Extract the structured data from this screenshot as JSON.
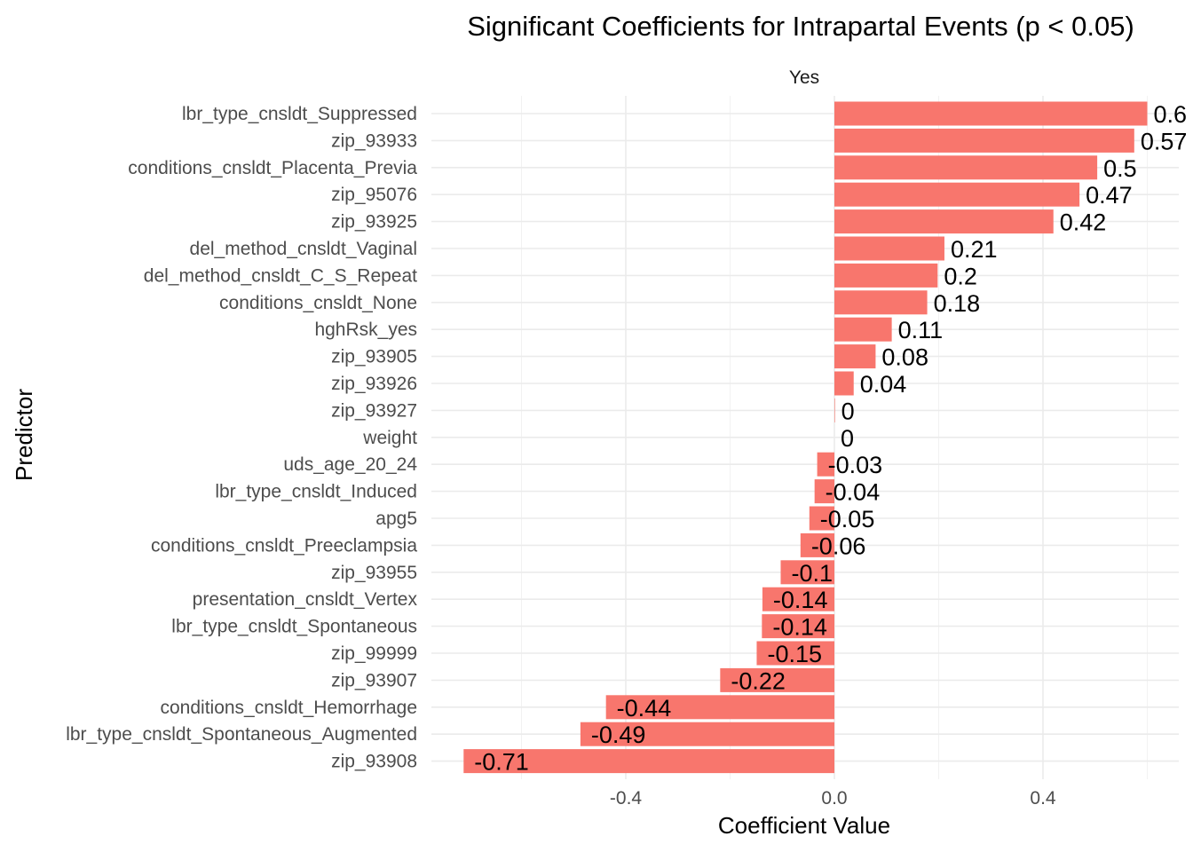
{
  "chart_data": {
    "type": "bar",
    "orientation": "horizontal",
    "title": "Significant Coefficients for Intrapartal Events (p < 0.05)",
    "facet_label": "Yes",
    "xlabel": "Coefficient Value",
    "ylabel": "Predictor",
    "xlim": [
      -0.745,
      0.665
    ],
    "x_ticks": [
      -0.4,
      0.0,
      0.4
    ],
    "x_tick_labels": [
      "-0.4",
      "0.0",
      "0.4"
    ],
    "grid": true,
    "legend": "none",
    "bar_color": "#F8766D",
    "categories": [
      "lbr_type_cnsldt_Suppressed",
      "zip_93933",
      "conditions_cnsldt_Placenta_Previa",
      "zip_95076",
      "zip_93925",
      "del_method_cnsldt_Vaginal",
      "del_method_cnsldt_C_S_Repeat",
      "conditions_cnsldt_None",
      "hghRsk_yes",
      "zip_93905",
      "zip_93926",
      "zip_93927",
      "weight",
      "uds_age_20_24",
      "lbr_type_cnsldt_Induced",
      "apg5",
      "conditions_cnsldt_Preeclampsia",
      "zip_93955",
      "presentation_cnsldt_Vertex",
      "lbr_type_cnsldt_Spontaneous",
      "zip_99999",
      "zip_93907",
      "conditions_cnsldt_Hemorrhage",
      "lbr_type_cnsldt_Spontaneous_Augmented",
      "zip_93908"
    ],
    "values": [
      0.6,
      0.575,
      0.504,
      0.47,
      0.42,
      0.211,
      0.198,
      0.178,
      0.11,
      0.079,
      0.037,
      0.001,
      0.0,
      -0.033,
      -0.038,
      -0.048,
      -0.065,
      -0.103,
      -0.138,
      -0.139,
      -0.149,
      -0.219,
      -0.438,
      -0.487,
      -0.711
    ],
    "labels": [
      "0.6",
      "0.57",
      "0.5",
      "0.47",
      "0.42",
      "0.21",
      "0.2",
      "0.18",
      "0.11",
      "0.08",
      "0.04",
      "0",
      "0",
      "-0.03",
      "-0.04",
      "-0.05",
      "-0.06",
      "-0.1",
      "-0.14",
      "-0.14",
      "-0.15",
      "-0.22",
      "-0.44",
      "-0.49",
      "-0.71"
    ]
  }
}
